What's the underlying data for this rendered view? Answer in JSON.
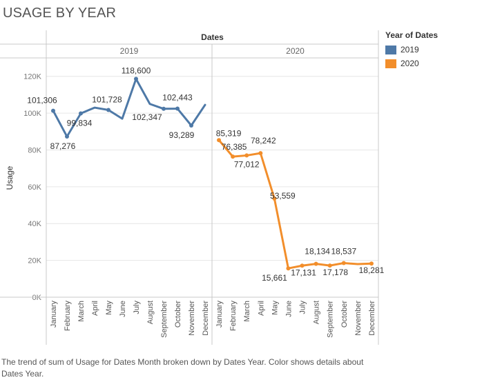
{
  "title": "USAGE BY YEAR",
  "caption": "The trend of sum of Usage for Dates Month broken down by Dates Year.  Color shows details about Dates Year.",
  "colors": {
    "2019": "#4e79a7",
    "2020": "#f28e2b",
    "grid": "#e6e6e6",
    "axis": "#c8c8c8"
  },
  "legend": {
    "title": "Year of Dates",
    "items": [
      {
        "label": "2019",
        "color": "#4e79a7"
      },
      {
        "label": "2020",
        "color": "#f28e2b"
      }
    ]
  },
  "chart_data": {
    "type": "line",
    "title": "USAGE BY YEAR",
    "column_header": "Dates",
    "ylabel": "Usage",
    "ylim": [
      0,
      130000
    ],
    "yticks": [
      0,
      20000,
      40000,
      60000,
      80000,
      100000,
      120000
    ],
    "ytick_labels": [
      "0K",
      "20K",
      "40K",
      "60K",
      "80K",
      "100K",
      "120K"
    ],
    "categories": [
      "January",
      "February",
      "March",
      "April",
      "May",
      "June",
      "July",
      "August",
      "September",
      "October",
      "November",
      "December"
    ],
    "grid": true,
    "legend_position": "top-right",
    "series": [
      {
        "name": "2019",
        "color": "#4e79a7",
        "values": [
          101306,
          87276,
          99834,
          103000,
          101728,
          97000,
          118600,
          105000,
          102347,
          102443,
          93289,
          104500
        ],
        "labels": [
          "101,306",
          "87,276",
          "99,834",
          "",
          "101,728",
          "",
          "118,600",
          "",
          "102,347",
          "102,443",
          "93,289",
          ""
        ]
      },
      {
        "name": "2020",
        "color": "#f28e2b",
        "values": [
          85319,
          76385,
          77012,
          78242,
          53559,
          15661,
          17131,
          18134,
          17178,
          18537,
          18000,
          18281
        ],
        "labels": [
          "85,319",
          "76,385",
          "77,012",
          "78,242",
          "53,559",
          "15,661",
          "17,131",
          "18,134",
          "17,178",
          "18,537",
          "",
          "18,281"
        ]
      }
    ]
  }
}
